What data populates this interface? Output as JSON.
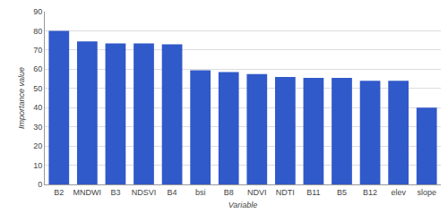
{
  "chart_data": {
    "type": "bar",
    "x_label": "Variable",
    "y_label": "Importance value",
    "categories": [
      "B2",
      "MNDWI",
      "B3",
      "NDSVI",
      "B4",
      "bsi",
      "B8",
      "NDVI",
      "NDTI",
      "B11",
      "B5",
      "B12",
      "elev",
      "slope"
    ],
    "values": [
      80,
      74.5,
      73.5,
      73.5,
      73,
      59.5,
      58.5,
      57.5,
      56,
      55.5,
      55.5,
      54,
      54,
      40
    ],
    "color": "#3059c9",
    "ylim": [
      0,
      90
    ],
    "yticks": [
      0,
      10,
      20,
      30,
      40,
      50,
      60,
      70,
      80,
      90
    ],
    "grid": true
  }
}
